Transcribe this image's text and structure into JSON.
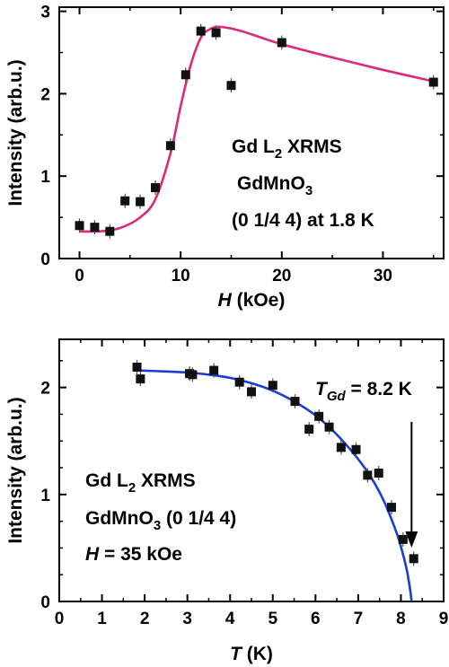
{
  "chart_data": [
    {
      "type": "scatter",
      "xlabel_italic": "H",
      "xlabel_rest": " (kOe)",
      "ylabel": "Intensity (arb.u.)",
      "xlim": [
        -2,
        36
      ],
      "ylim": [
        0,
        3.05
      ],
      "xticks": [
        0,
        10,
        20,
        30
      ],
      "yticks": [
        0,
        1,
        2,
        3
      ],
      "grid": false,
      "fit_color": "#e0287a",
      "marker_color": "#111111",
      "points": [
        {
          "x": 0,
          "y": 0.4
        },
        {
          "x": 1.5,
          "y": 0.38
        },
        {
          "x": 3,
          "y": 0.33
        },
        {
          "x": 4.5,
          "y": 0.7
        },
        {
          "x": 6,
          "y": 0.69
        },
        {
          "x": 7.5,
          "y": 0.86
        },
        {
          "x": 9,
          "y": 1.37
        },
        {
          "x": 10.5,
          "y": 2.23
        },
        {
          "x": 12,
          "y": 2.76
        },
        {
          "x": 13.5,
          "y": 2.74
        },
        {
          "x": 15,
          "y": 2.1
        },
        {
          "x": 20,
          "y": 2.62
        },
        {
          "x": 35,
          "y": 2.14
        }
      ],
      "fit": [
        {
          "x": 0,
          "y": 0.33
        },
        {
          "x": 2,
          "y": 0.33
        },
        {
          "x": 4,
          "y": 0.37
        },
        {
          "x": 6,
          "y": 0.5
        },
        {
          "x": 7.5,
          "y": 0.72
        },
        {
          "x": 9,
          "y": 1.28
        },
        {
          "x": 10,
          "y": 1.85
        },
        {
          "x": 11,
          "y": 2.35
        },
        {
          "x": 12,
          "y": 2.68
        },
        {
          "x": 13,
          "y": 2.79
        },
        {
          "x": 14,
          "y": 2.81
        },
        {
          "x": 16,
          "y": 2.76
        },
        {
          "x": 20,
          "y": 2.6
        },
        {
          "x": 25,
          "y": 2.44
        },
        {
          "x": 30,
          "y": 2.29
        },
        {
          "x": 35,
          "y": 2.15
        }
      ],
      "annotation": {
        "line1_main": "Gd L",
        "line1_sub": "2",
        "line1_rest": " XRMS",
        "line2_main": "GdMnO",
        "line2_sub": "3",
        "line3": "(0 1/4 4) at 1.8 K"
      }
    },
    {
      "type": "scatter",
      "xlabel_italic": "T",
      "xlabel_rest": " (K)",
      "ylabel": "Intensity (arb.u.)",
      "xlim": [
        0,
        9
      ],
      "ylim": [
        0,
        2.45
      ],
      "xticks": [
        0,
        1,
        2,
        3,
        4,
        5,
        6,
        7,
        8,
        9
      ],
      "yticks": [
        0,
        1,
        2
      ],
      "grid": false,
      "fit_color": "#1a3dd6",
      "marker_color": "#111111",
      "points": [
        {
          "x": 1.82,
          "y": 2.19
        },
        {
          "x": 1.9,
          "y": 2.08
        },
        {
          "x": 3.05,
          "y": 2.13
        },
        {
          "x": 3.12,
          "y": 2.12
        },
        {
          "x": 3.62,
          "y": 2.16
        },
        {
          "x": 4.22,
          "y": 2.05
        },
        {
          "x": 4.5,
          "y": 1.96
        },
        {
          "x": 5.0,
          "y": 2.02
        },
        {
          "x": 5.52,
          "y": 1.87
        },
        {
          "x": 5.85,
          "y": 1.61
        },
        {
          "x": 6.08,
          "y": 1.73
        },
        {
          "x": 6.32,
          "y": 1.63
        },
        {
          "x": 6.6,
          "y": 1.44
        },
        {
          "x": 6.95,
          "y": 1.42
        },
        {
          "x": 7.22,
          "y": 1.18
        },
        {
          "x": 7.48,
          "y": 1.2
        },
        {
          "x": 7.78,
          "y": 0.88
        },
        {
          "x": 8.05,
          "y": 0.58
        },
        {
          "x": 8.3,
          "y": 0.4
        }
      ],
      "fit": [
        {
          "x": 1.8,
          "y": 2.16
        },
        {
          "x": 2.5,
          "y": 2.15
        },
        {
          "x": 3.0,
          "y": 2.14
        },
        {
          "x": 3.5,
          "y": 2.12
        },
        {
          "x": 4.0,
          "y": 2.09
        },
        {
          "x": 4.5,
          "y": 2.04
        },
        {
          "x": 5.0,
          "y": 1.97
        },
        {
          "x": 5.5,
          "y": 1.87
        },
        {
          "x": 6.0,
          "y": 1.74
        },
        {
          "x": 6.5,
          "y": 1.56
        },
        {
          "x": 7.0,
          "y": 1.33
        },
        {
          "x": 7.3,
          "y": 1.16
        },
        {
          "x": 7.6,
          "y": 0.94
        },
        {
          "x": 7.9,
          "y": 0.64
        },
        {
          "x": 8.05,
          "y": 0.44
        },
        {
          "x": 8.15,
          "y": 0.27
        },
        {
          "x": 8.22,
          "y": 0.1
        },
        {
          "x": 8.25,
          "y": 0
        }
      ],
      "annotation": {
        "line1_main": "Gd L",
        "line1_sub": "2",
        "line1_rest": " XRMS",
        "line2_main": "GdMnO",
        "line2_sub": "3",
        "line2_rest": " (0 1/4 4)",
        "line3_italic": "H",
        "line3_rest": " = 35 kOe",
        "tgd_main": "T",
        "tgd_sub": "Gd",
        "tgd_rest": " = 8.2 K",
        "arrow_x": 8.25
      }
    }
  ]
}
